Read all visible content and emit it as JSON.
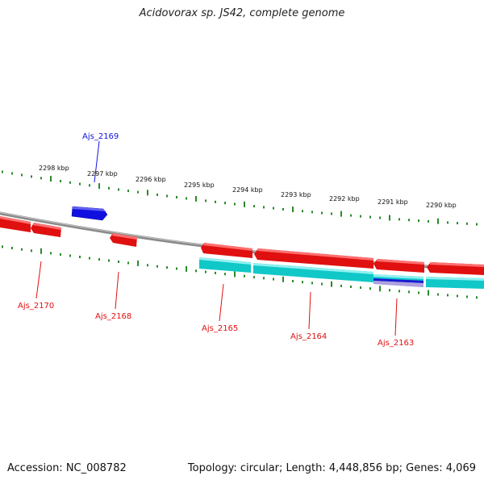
{
  "title": "Acidovorax sp. JS42, complete genome",
  "footer": {
    "accession": "Accession: NC_008782",
    "topology": "Topology: circular; Length: 4,448,856 bp; Genes: 4,069"
  },
  "ticks": [
    "2298 kbp",
    "2297 kbp",
    "2296 kbp",
    "2295 kbp",
    "2294 kbp",
    "2293 kbp",
    "2292 kbp",
    "2291 kbp",
    "2290 kbp"
  ],
  "genes": {
    "forward": [
      "Ajs_2169"
    ],
    "reverse": [
      "Ajs_2170",
      "Ajs_2168",
      "Ajs_2165",
      "Ajs_2164",
      "Ajs_2163"
    ]
  },
  "colors": {
    "forward_gene": "#1010e0",
    "reverse_gene": "#e01010",
    "feature": "#10c8c8",
    "backbone": "#888888",
    "tick": "#2a8a2a"
  }
}
